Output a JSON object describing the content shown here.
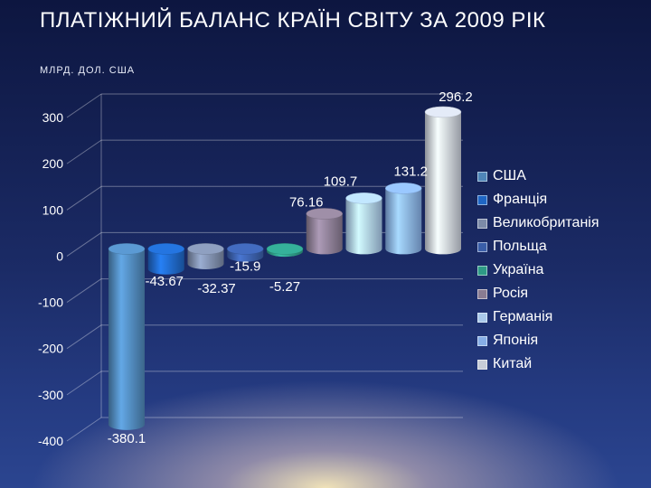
{
  "slide": {
    "title": "ПЛАТІЖНИЙ БАЛАНС КРАЇН СВІТУ ЗА 2009 РІК",
    "subtitle": "МЛРД. ДОЛ. США"
  },
  "chart_data": {
    "type": "bar",
    "categories": [
      "США",
      "Франція",
      "Великобританія",
      "Польща",
      "Україна",
      "Росія",
      "Германія",
      "Японія",
      "Китай"
    ],
    "values": [
      -380.1,
      -43.67,
      -32.37,
      -15.9,
      -5.27,
      76.16,
      109.7,
      131.2,
      296.2
    ],
    "value_labels": [
      "-380.1",
      "-43.67",
      "-32.37",
      "-15.9",
      "-5.27",
      "76.16",
      "109.7",
      "131.2",
      "296.2"
    ],
    "colors": [
      "#4f86b8",
      "#1f66c4",
      "#7c8ba8",
      "#3a5ea8",
      "#2e9a86",
      "#8a7c92",
      "#a9c9ea",
      "#86aee6",
      "#c6ccd8"
    ],
    "y_ticks": [
      -400,
      -300,
      -200,
      -100,
      0,
      100,
      200,
      300
    ],
    "y_tick_labels": [
      "-400",
      "-300",
      "-200",
      "-100",
      "0",
      "100",
      "200",
      "300"
    ],
    "ylim": [
      -400,
      300
    ],
    "grid": true,
    "legend_position": "right",
    "style": "3d-cylinder"
  }
}
